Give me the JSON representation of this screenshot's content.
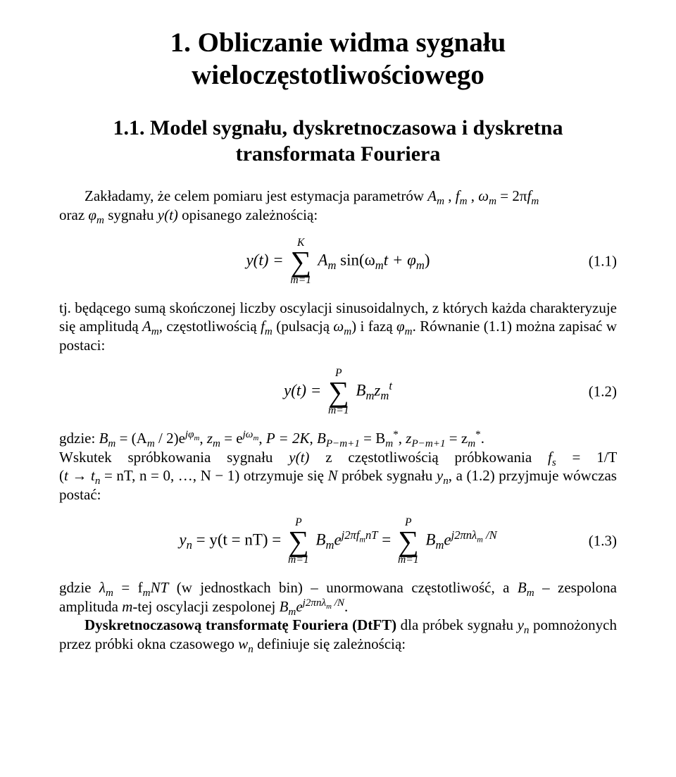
{
  "text_color": "#000000",
  "background_color": "#ffffff",
  "font_family": "Times New Roman",
  "title_fontsize": 39,
  "subtitle_fontsize": 30,
  "body_fontsize": 21,
  "heading": "1. Obliczanie widma sygnału wieloczęstotliwościowego",
  "subheading": "1.1. Model sygnału, dyskretnoczasowa i dyskretna transformata Fouriera",
  "para1_part1": "Zakładamy, że celem pomiaru jest estymacja parametrów ",
  "para1_sym_A": "A",
  "para1_sub_m1": "m",
  "para1_comma1": ", ",
  "para1_sym_f": "f",
  "para1_sub_m2": "m",
  "para1_comma2": ", ",
  "para1_sym_omega": "ω",
  "para1_sub_m3": "m",
  "para1_eq": " = 2π",
  "para1_sym_f2": "f",
  "para1_sub_m4": "m",
  "para1_part2_a": "oraz ",
  "para1_sym_phi": "φ",
  "para1_sub_m5": "m",
  "para1_part2_b": " sygnału ",
  "para1_yt": "y(t)",
  "para1_part2_c": " opisanego zależnością:",
  "eq1": {
    "lhs": "y(t) = ",
    "sum_top": "K",
    "sum_bot": "m=1",
    "body": "A",
    "body_sub": "m",
    "sin": " sin(ω",
    "sin_sub": "m",
    "mid": "t + φ",
    "phi_sub": "m",
    "close": ")",
    "num": "(1.1)"
  },
  "para2_a": "tj. będącego sumą skończonej liczby oscylacji sinusoidalnych, z których każda charakteryzuje się amplitudą ",
  "para2_Am": "A",
  "para2_Am_sub": "m",
  "para2_b": ", częstotliwością ",
  "para2_fm": "f",
  "para2_fm_sub": "m",
  "para2_c": " (pulsacją ",
  "para2_wm": "ω",
  "para2_wm_sub": "m",
  "para2_d": ") i fazą ",
  "para2_phim": "φ",
  "para2_phim_sub": "m",
  "para2_e": ". Równanie (1.1) można zapisać w postaci:",
  "eq2": {
    "lhs": "y(t) = ",
    "sum_top": "P",
    "sum_bot": "m=1",
    "B": "B",
    "B_sub": "m",
    "z": "z",
    "z_sub": "m",
    "z_sup": "t",
    "num": "(1.2)"
  },
  "para3_a": "gdzie: ",
  "p3_Bm": "B",
  "p3_Bm_sub": "m",
  "p3_eq1": " = (A",
  "p3_Am_sub": "m",
  "p3_over": " / 2)e",
  "p3_exp1": "jφ",
  "p3_exp1_sub": "m",
  "p3_c1": ", ",
  "p3_zm": "z",
  "p3_zm_sub": "m",
  "p3_eq2": " = e",
  "p3_exp2": "jω",
  "p3_exp2_sub": "m",
  "p3_c2": ", ",
  "p3_P": "P = 2K",
  "p3_c3": ", ",
  "p3_Bp": "B",
  "p3_Bp_sub": "P−m+1",
  "p3_eq3": " = B",
  "p3_Bstar_sub": "m",
  "p3_star": "*",
  "p3_c4": ", ",
  "p3_zp": "z",
  "p3_zp_sub": "P−m+1",
  "p3_eq4": " = z",
  "p3_zstar_sub": "m",
  "p3_star2": "*",
  "p3_dot": ".",
  "para4_a": "Wskutek spróbkowania sygnału ",
  "p4_yt": "y(t)",
  "para4_b": " z częstotliwością próbkowania ",
  "p4_fs": "f",
  "p4_fs_sub": "s",
  "p4_fs_eq": " = 1/T",
  "para4_c": " (",
  "p4_t": "t → t",
  "p4_tn_sub": "n",
  "p4_tn_eq": " = nT",
  "p4_n": ", n = 0, …, N − 1",
  "para4_d": ") otrzymuje się ",
  "p4_N": "N",
  "para4_e": " próbek sygnału ",
  "p4_yn": "y",
  "p4_yn_sub": "n",
  "para4_f": ", a (1.2) przyjmuje wówczas postać:",
  "eq3": {
    "lhs1": "y",
    "lhs1_sub": "n",
    "lhs2": " = y(t = nT) = ",
    "sum1_top": "P",
    "sum1_bot": "m=1",
    "B1": "B",
    "B1_sub": "m",
    "e1": "e",
    "e1_sup": "j2πf",
    "e1_sup_sub": "m",
    "e1_tail": "nT",
    "mid": " = ",
    "sum2_top": "P",
    "sum2_bot": "m=1",
    "B2": "B",
    "B2_sub": "m",
    "e2": "e",
    "e2_sup": "j2πnλ",
    "e2_sup_sub": "m",
    "e2_tail": " /N",
    "num": "(1.3)"
  },
  "para5_a": "gdzie ",
  "p5_lam": "λ",
  "p5_lam_sub": "m",
  "p5_eq": " = f",
  "p5_f_sub": "m",
  "p5_NT": "NT",
  "para5_b": " (w jednostkach bin) – unormowana częstotliwość, a ",
  "p5_Bm": "B",
  "p5_Bm_sub": "m",
  "para5_c": " – zespolona amplituda ",
  "p5_mtej": "m",
  "para5_d": "-tej oscylacji zespolonej ",
  "p5_Be": "B",
  "p5_Be_sub": "m",
  "p5_e": "e",
  "p5_e_sup": "j2πnλ",
  "p5_e_sup_sub": "m",
  "p5_e_tail": " /N",
  "p5_dot": ".",
  "para6_bold": "Dyskretnoczasową transformatę Fouriera (DtFT)",
  "para6_a": " dla próbek sygnału ",
  "p6_yn": "y",
  "p6_yn_sub": "n",
  "para6_b": " pomnożonych przez próbki okna czasowego ",
  "p6_wn": "w",
  "p6_wn_sub": "n",
  "para6_c": " definiuje się zależnością:"
}
